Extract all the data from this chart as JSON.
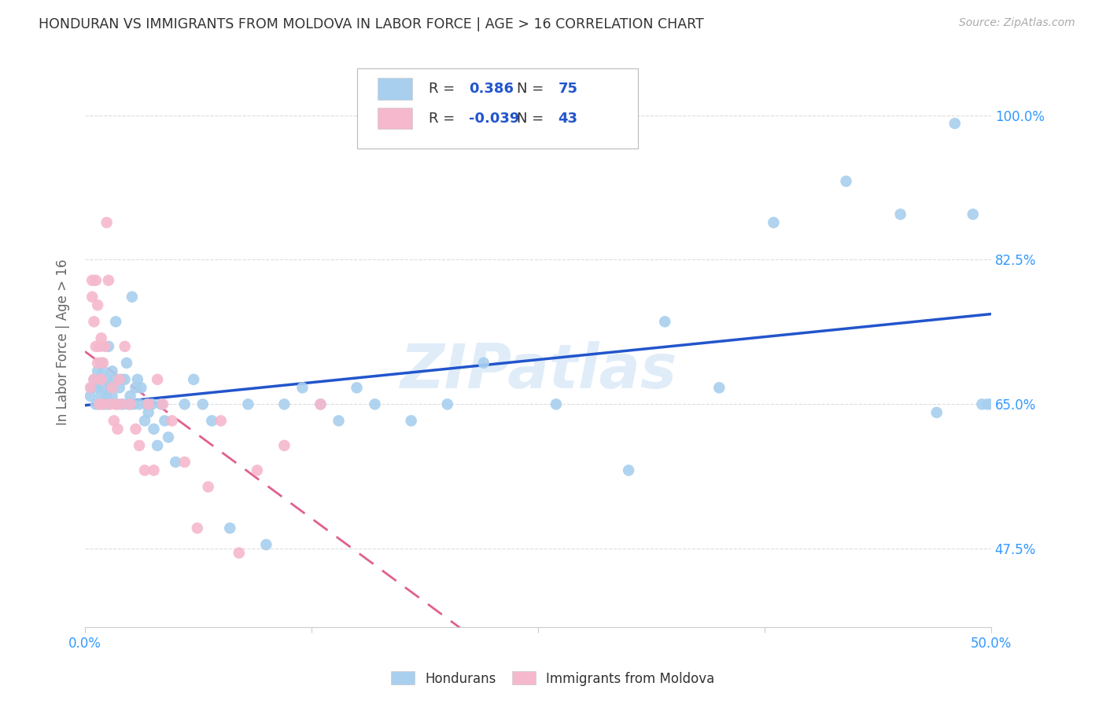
{
  "title": "HONDURAN VS IMMIGRANTS FROM MOLDOVA IN LABOR FORCE | AGE > 16 CORRELATION CHART",
  "source": "Source: ZipAtlas.com",
  "ylabel": "In Labor Force | Age > 16",
  "ytick_labels": [
    "47.5%",
    "65.0%",
    "82.5%",
    "100.0%"
  ],
  "ytick_values": [
    0.475,
    0.65,
    0.825,
    1.0
  ],
  "xlim": [
    0.0,
    0.5
  ],
  "ylim": [
    0.38,
    1.07
  ],
  "blue_R": 0.386,
  "blue_N": 75,
  "pink_R": -0.039,
  "pink_N": 43,
  "blue_color": "#A8CFEE",
  "pink_color": "#F5B8CC",
  "blue_line_color": "#2255CC",
  "pink_line_color": "#E06090",
  "label_color": "#3399FF",
  "watermark": "ZIPatlas",
  "legend_hondurans": "Hondurans",
  "legend_moldova": "Immigrants from Moldova",
  "blue_scatter_x": [
    0.003,
    0.004,
    0.005,
    0.006,
    0.007,
    0.007,
    0.008,
    0.008,
    0.009,
    0.009,
    0.01,
    0.01,
    0.011,
    0.012,
    0.012,
    0.013,
    0.013,
    0.014,
    0.015,
    0.015,
    0.016,
    0.017,
    0.018,
    0.019,
    0.02,
    0.021,
    0.022,
    0.023,
    0.024,
    0.025,
    0.026,
    0.027,
    0.028,
    0.029,
    0.03,
    0.031,
    0.033,
    0.034,
    0.035,
    0.037,
    0.038,
    0.04,
    0.042,
    0.044,
    0.046,
    0.05,
    0.055,
    0.06,
    0.065,
    0.07,
    0.08,
    0.09,
    0.1,
    0.11,
    0.12,
    0.13,
    0.14,
    0.15,
    0.16,
    0.18,
    0.2,
    0.22,
    0.26,
    0.3,
    0.32,
    0.35,
    0.38,
    0.42,
    0.45,
    0.47,
    0.48,
    0.49,
    0.495,
    0.498,
    0.5
  ],
  "blue_scatter_y": [
    0.66,
    0.67,
    0.68,
    0.65,
    0.67,
    0.69,
    0.65,
    0.68,
    0.66,
    0.7,
    0.67,
    0.69,
    0.65,
    0.68,
    0.66,
    0.72,
    0.65,
    0.67,
    0.69,
    0.66,
    0.68,
    0.75,
    0.65,
    0.67,
    0.68,
    0.65,
    0.68,
    0.7,
    0.65,
    0.66,
    0.78,
    0.65,
    0.67,
    0.68,
    0.65,
    0.67,
    0.63,
    0.65,
    0.64,
    0.65,
    0.62,
    0.6,
    0.65,
    0.63,
    0.61,
    0.58,
    0.65,
    0.68,
    0.65,
    0.63,
    0.5,
    0.65,
    0.48,
    0.65,
    0.67,
    0.65,
    0.63,
    0.67,
    0.65,
    0.63,
    0.65,
    0.7,
    0.65,
    0.57,
    0.75,
    0.67,
    0.87,
    0.92,
    0.88,
    0.64,
    0.99,
    0.88,
    0.65,
    0.65,
    0.65
  ],
  "pink_scatter_x": [
    0.003,
    0.004,
    0.004,
    0.005,
    0.005,
    0.006,
    0.006,
    0.007,
    0.007,
    0.008,
    0.008,
    0.009,
    0.009,
    0.01,
    0.01,
    0.011,
    0.012,
    0.013,
    0.014,
    0.015,
    0.016,
    0.017,
    0.018,
    0.019,
    0.02,
    0.022,
    0.025,
    0.028,
    0.03,
    0.033,
    0.035,
    0.038,
    0.04,
    0.043,
    0.048,
    0.055,
    0.062,
    0.068,
    0.075,
    0.085,
    0.095,
    0.11,
    0.13
  ],
  "pink_scatter_y": [
    0.67,
    0.78,
    0.8,
    0.68,
    0.75,
    0.72,
    0.8,
    0.7,
    0.77,
    0.65,
    0.72,
    0.68,
    0.73,
    0.65,
    0.7,
    0.72,
    0.87,
    0.8,
    0.65,
    0.67,
    0.63,
    0.65,
    0.62,
    0.68,
    0.65,
    0.72,
    0.65,
    0.62,
    0.6,
    0.57,
    0.65,
    0.57,
    0.68,
    0.65,
    0.63,
    0.58,
    0.5,
    0.55,
    0.63,
    0.47,
    0.57,
    0.6,
    0.65
  ]
}
